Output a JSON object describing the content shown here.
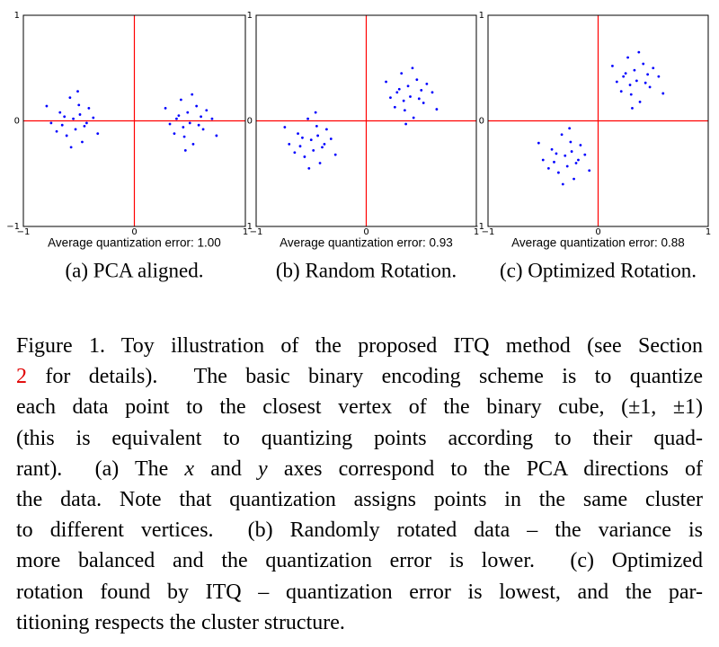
{
  "chart_data": [
    {
      "type": "scatter",
      "title": "(a) PCA aligned.",
      "xlabel": "Average quantization error: 1.00",
      "xlim": [
        -1,
        1
      ],
      "ylim": [
        -1,
        1
      ],
      "xticks": [
        {
          "value": -1,
          "label": "−1"
        },
        0,
        1
      ],
      "yticks": [
        {
          "value": -1,
          "label": "−1"
        },
        0,
        1
      ],
      "axis_color": "#ff0000",
      "grid": false,
      "series": [
        {
          "color": "#0000ff",
          "x": [
            -0.55,
            -0.45,
            -0.67,
            -0.5,
            -0.61,
            -0.37,
            -0.75,
            -0.47,
            -0.58,
            -0.41,
            -0.7,
            -0.53,
            -0.63,
            -0.33,
            -0.79,
            -0.49,
            -0.57,
            -0.43,
            -0.65,
            -0.51,
            0.5,
            0.4,
            0.62,
            0.45,
            0.56,
            0.32,
            0.7,
            0.42,
            0.53,
            0.36,
            0.65,
            0.48,
            0.58,
            0.28,
            0.74,
            0.44,
            0.52,
            0.38,
            0.6,
            0.46
          ],
          "y": [
            0.02,
            -0.05,
            0.08,
            0.15,
            -0.14,
            0.03,
            -0.02,
            -0.2,
            0.22,
            0.12,
            -0.1,
            -0.08,
            0.04,
            -0.12,
            0.14,
            0.06,
            -0.25,
            -0.02,
            -0.04,
            0.28,
            -0.02,
            0.05,
            -0.08,
            -0.15,
            0.14,
            -0.03,
            0.02,
            0.2,
            -0.22,
            -0.12,
            0.1,
            0.08,
            -0.04,
            0.12,
            -0.14,
            -0.06,
            0.25,
            0.02,
            0.04,
            -0.28
          ]
        }
      ]
    },
    {
      "type": "scatter",
      "title": "(b) Random Rotation.",
      "xlabel": "Average quantization error: 0.93",
      "xlim": [
        -1,
        1
      ],
      "ylim": [
        -1,
        1
      ],
      "xticks": [
        {
          "value": -1,
          "label": "−1"
        },
        0,
        1
      ],
      "yticks": [
        {
          "value": -1,
          "label": "−1"
        },
        0,
        1
      ],
      "axis_color": "#ff0000",
      "grid": false,
      "series": [
        {
          "color": "#0000ff",
          "x": [
            -0.5,
            -0.4,
            -0.62,
            -0.45,
            -0.56,
            -0.32,
            -0.7,
            -0.42,
            -0.53,
            -0.36,
            -0.65,
            -0.48,
            -0.58,
            -0.28,
            -0.74,
            -0.44,
            -0.52,
            -0.38,
            -0.6,
            -0.46,
            0.4,
            0.3,
            0.52,
            0.35,
            0.46,
            0.22,
            0.6,
            0.32,
            0.43,
            0.26,
            0.55,
            0.38,
            0.48,
            0.18,
            0.64,
            0.34,
            0.42,
            0.28,
            0.5,
            0.36
          ],
          "y": [
            -0.18,
            -0.25,
            -0.12,
            -0.05,
            -0.34,
            -0.17,
            -0.22,
            -0.4,
            0.02,
            -0.08,
            -0.3,
            -0.28,
            -0.16,
            -0.32,
            -0.06,
            -0.14,
            -0.45,
            -0.22,
            -0.24,
            0.08,
            0.23,
            0.3,
            0.17,
            0.1,
            0.39,
            0.22,
            0.27,
            0.45,
            0.03,
            0.13,
            0.35,
            0.33,
            0.21,
            0.37,
            0.11,
            0.19,
            0.5,
            0.27,
            0.29,
            -0.03
          ]
        }
      ]
    },
    {
      "type": "scatter",
      "title": "(c) Optimized Rotation.",
      "xlabel": "Average quantization error: 0.88",
      "xlim": [
        -1,
        1
      ],
      "ylim": [
        -1,
        1
      ],
      "xticks": [
        {
          "value": -1,
          "label": "−1"
        },
        0,
        1
      ],
      "yticks": [
        {
          "value": -1,
          "label": "−1"
        },
        0,
        1
      ],
      "axis_color": "#ff0000",
      "grid": false,
      "series": [
        {
          "color": "#0000ff",
          "x": [
            -0.3,
            -0.2,
            -0.42,
            -0.25,
            -0.36,
            -0.12,
            -0.5,
            -0.22,
            -0.33,
            -0.16,
            -0.45,
            -0.28,
            -0.38,
            -0.08,
            -0.54,
            -0.24,
            -0.32,
            -0.18,
            -0.4,
            -0.26,
            0.35,
            0.25,
            0.47,
            0.3,
            0.41,
            0.17,
            0.55,
            0.27,
            0.38,
            0.21,
            0.5,
            0.33,
            0.43,
            0.13,
            0.59,
            0.29,
            0.37,
            0.23,
            0.45,
            0.31
          ],
          "y": [
            -0.33,
            -0.4,
            -0.27,
            -0.2,
            -0.49,
            -0.32,
            -0.37,
            -0.55,
            -0.13,
            -0.23,
            -0.45,
            -0.43,
            -0.31,
            -0.47,
            -0.21,
            -0.29,
            -0.6,
            -0.37,
            -0.39,
            -0.07,
            0.38,
            0.45,
            0.32,
            0.25,
            0.54,
            0.37,
            0.42,
            0.6,
            0.18,
            0.28,
            0.5,
            0.48,
            0.36,
            0.52,
            0.26,
            0.34,
            0.65,
            0.42,
            0.44,
            0.12
          ]
        }
      ]
    }
  ],
  "caption": {
    "lines": [
      [
        "Figure 1. Toy illustration of the proposed ITQ method (see Section"
      ],
      [
        "2",
        " for details).  The basic binary encoding scheme is to quantize"
      ],
      [
        "each data point to the closest vertex of the binary cube, ",
        "(±1, ±1)"
      ],
      [
        "(this is equivalent to quantizing points according to their quad-"
      ],
      [
        "rant).  (a) The ",
        "x",
        " and ",
        "y",
        " axes correspond to the PCA directions of"
      ],
      [
        "the data. Note that quantization assigns points in the same cluster"
      ],
      [
        "to different vertices.  (b) Randomly rotated data – the variance is"
      ],
      [
        "more balanced and the quantization error is lower.  (c) Optimized"
      ],
      [
        "rotation found by ITQ – quantization error is lowest, and the par-"
      ],
      [
        "titioning respects the cluster structure."
      ]
    ]
  }
}
